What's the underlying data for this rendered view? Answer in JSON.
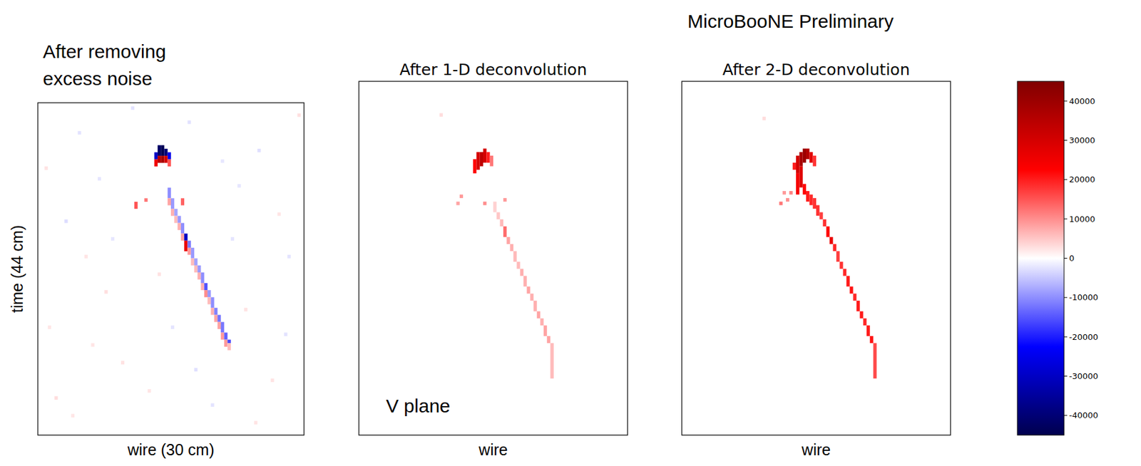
{
  "header": "MicroBooNE Preliminary",
  "chart_data": [
    {
      "type": "heatmap",
      "title": "After removing excess noise",
      "xlabel": "wire (30 cm)",
      "ylabel": "time (44 cm)",
      "xlim": [
        0,
        80
      ],
      "ylim": [
        0,
        94
      ],
      "tick_labels": false,
      "cells": [
        [
          35,
          78,
          80,
          -30000
        ],
        [
          36,
          79,
          82,
          -42000
        ],
        [
          37,
          79,
          82,
          -44000
        ],
        [
          38,
          79,
          81,
          -40000
        ],
        [
          39,
          78,
          80,
          -25000
        ],
        [
          35,
          76,
          78,
          25000
        ],
        [
          36,
          77,
          79,
          35000
        ],
        [
          37,
          77,
          79,
          38000
        ],
        [
          38,
          77,
          79,
          30000
        ],
        [
          39,
          76,
          78,
          15000
        ],
        [
          29,
          64,
          66,
          15000
        ],
        [
          32,
          66,
          67,
          12000
        ],
        [
          43,
          65,
          67,
          14000
        ],
        [
          39,
          67,
          70,
          -10000
        ],
        [
          39,
          65,
          67,
          8000
        ],
        [
          40,
          64,
          67,
          -9000
        ],
        [
          40,
          62,
          64,
          7000
        ],
        [
          41,
          62,
          64,
          -8000
        ],
        [
          41,
          60,
          62,
          6000
        ],
        [
          42,
          60,
          62,
          -9000
        ],
        [
          42,
          58,
          60,
          7000
        ],
        [
          43,
          57,
          60,
          -10000
        ],
        [
          43,
          55,
          57,
          8000
        ],
        [
          44,
          55,
          57,
          -30000
        ],
        [
          44,
          52,
          55,
          26000
        ],
        [
          45,
          53,
          55,
          -12000
        ],
        [
          45,
          51,
          53,
          9000
        ],
        [
          46,
          50,
          53,
          -9000
        ],
        [
          46,
          48,
          50,
          6000
        ],
        [
          47,
          48,
          50,
          -8000
        ],
        [
          47,
          46,
          48,
          6000
        ],
        [
          48,
          46,
          48,
          -9000
        ],
        [
          48,
          44,
          46,
          7000
        ],
        [
          49,
          43,
          46,
          -10000
        ],
        [
          49,
          41,
          43,
          7000
        ],
        [
          50,
          41,
          43,
          -15000
        ],
        [
          50,
          39,
          41,
          10000
        ],
        [
          51,
          39,
          41,
          -9000
        ],
        [
          51,
          37,
          39,
          6000
        ],
        [
          52,
          36,
          39,
          -10000
        ],
        [
          52,
          34,
          36,
          7000
        ],
        [
          53,
          34,
          36,
          -11000
        ],
        [
          53,
          32,
          34,
          8000
        ],
        [
          54,
          32,
          34,
          -12000
        ],
        [
          54,
          30,
          32,
          8000
        ],
        [
          55,
          29,
          32,
          -12000
        ],
        [
          55,
          27,
          29,
          9000
        ],
        [
          56,
          27,
          29,
          -14000
        ],
        [
          56,
          25,
          27,
          9000
        ],
        [
          57,
          26,
          27,
          -16000
        ],
        [
          57,
          24,
          26,
          6000
        ],
        [
          5,
          10,
          11,
          3000
        ],
        [
          12,
          85,
          86,
          -2500
        ],
        [
          20,
          40,
          41,
          2800
        ],
        [
          8,
          60,
          61,
          -3000
        ],
        [
          70,
          15,
          16,
          2500
        ],
        [
          66,
          80,
          81,
          -2800
        ],
        [
          3,
          30,
          31,
          2200
        ],
        [
          75,
          50,
          51,
          -2400
        ],
        [
          25,
          20,
          21,
          2600
        ],
        [
          60,
          70,
          71,
          -2200
        ],
        [
          14,
          50,
          51,
          2400
        ],
        [
          45,
          88,
          89,
          -2600
        ],
        [
          33,
          12,
          13,
          2300
        ],
        [
          52,
          8,
          9,
          -2500
        ],
        [
          78,
          90,
          91,
          2700
        ],
        [
          18,
          72,
          73,
          -2300
        ],
        [
          62,
          35,
          36,
          2500
        ],
        [
          40,
          30,
          31,
          -2400
        ],
        [
          10,
          5,
          6,
          2200
        ],
        [
          28,
          92,
          93,
          -2600
        ],
        [
          72,
          62,
          63,
          2300
        ],
        [
          55,
          77,
          78,
          -2100
        ],
        [
          2,
          75,
          76,
          2500
        ],
        [
          47,
          18,
          19,
          -2700
        ],
        [
          65,
          3,
          4,
          2400
        ],
        [
          22,
          55,
          56,
          -2200
        ],
        [
          36,
          45,
          46,
          2600
        ],
        [
          74,
          28,
          29,
          -2500
        ],
        [
          16,
          25,
          26,
          2300
        ],
        [
          58,
          55,
          56,
          -2400
        ]
      ]
    },
    {
      "type": "heatmap",
      "title": "After 1-D deconvolution",
      "xlabel": "wire",
      "annotation": "V plane",
      "xlim": [
        0,
        80
      ],
      "ylim": [
        0,
        100
      ],
      "tick_labels": false,
      "cells": [
        [
          34,
          74,
          78,
          22000
        ],
        [
          35,
          75,
          80,
          30000
        ],
        [
          36,
          76,
          80,
          34000
        ],
        [
          37,
          77,
          81,
          30000
        ],
        [
          38,
          77,
          80,
          20000
        ],
        [
          39,
          76,
          79,
          12000
        ],
        [
          30,
          67,
          68,
          9000
        ],
        [
          29,
          65,
          66,
          8000
        ],
        [
          37,
          65,
          66,
          10000
        ],
        [
          43,
          66,
          67,
          9000
        ],
        [
          24,
          90,
          91,
          3000
        ],
        [
          40,
          63,
          66,
          4000
        ],
        [
          41,
          61,
          63,
          5000
        ],
        [
          42,
          59,
          61,
          6000
        ],
        [
          43,
          56,
          59,
          13000
        ],
        [
          44,
          54,
          56,
          8000
        ],
        [
          45,
          52,
          54,
          7000
        ],
        [
          46,
          49,
          52,
          6000
        ],
        [
          47,
          47,
          49,
          6000
        ],
        [
          48,
          45,
          47,
          7000
        ],
        [
          49,
          42,
          45,
          7000
        ],
        [
          50,
          40,
          42,
          8000
        ],
        [
          51,
          38,
          40,
          7000
        ],
        [
          52,
          35,
          38,
          7000
        ],
        [
          53,
          33,
          35,
          8000
        ],
        [
          54,
          31,
          33,
          7000
        ],
        [
          55,
          28,
          31,
          8000
        ],
        [
          56,
          26,
          28,
          8000
        ],
        [
          57,
          16,
          26,
          6000
        ]
      ]
    },
    {
      "type": "heatmap",
      "title": "After 2-D deconvolution",
      "xlabel": "wire",
      "xlim": [
        0,
        80
      ],
      "ylim": [
        0,
        100
      ],
      "tick_labels": false,
      "cells": [
        [
          33,
          75,
          77,
          20000
        ],
        [
          34,
          74,
          79,
          30000
        ],
        [
          35,
          76,
          80,
          38000
        ],
        [
          36,
          77,
          81,
          40000
        ],
        [
          37,
          78,
          81,
          36000
        ],
        [
          38,
          77,
          80,
          28000
        ],
        [
          39,
          76,
          79,
          18000
        ],
        [
          34,
          68,
          74,
          24000
        ],
        [
          35,
          70,
          76,
          28000
        ],
        [
          29,
          65,
          66,
          12000
        ],
        [
          31,
          66,
          67,
          10000
        ],
        [
          32,
          68,
          69,
          11000
        ],
        [
          30,
          68,
          69,
          9000
        ],
        [
          24,
          89,
          90,
          3000
        ],
        [
          36,
          68,
          71,
          22000
        ],
        [
          37,
          66,
          69,
          20000
        ],
        [
          38,
          65,
          68,
          19000
        ],
        [
          39,
          64,
          67,
          18000
        ],
        [
          40,
          62,
          65,
          18000
        ],
        [
          41,
          61,
          63,
          17000
        ],
        [
          42,
          59,
          61,
          18000
        ],
        [
          43,
          56,
          59,
          22000
        ],
        [
          44,
          54,
          56,
          26000
        ],
        [
          45,
          52,
          54,
          19000
        ],
        [
          46,
          49,
          52,
          17000
        ],
        [
          47,
          47,
          49,
          18000
        ],
        [
          48,
          45,
          47,
          19000
        ],
        [
          49,
          42,
          45,
          20000
        ],
        [
          50,
          40,
          42,
          21000
        ],
        [
          51,
          38,
          40,
          19000
        ],
        [
          52,
          35,
          38,
          20000
        ],
        [
          53,
          33,
          35,
          20000
        ],
        [
          54,
          31,
          33,
          19000
        ],
        [
          55,
          28,
          31,
          20000
        ],
        [
          56,
          26,
          28,
          21000
        ],
        [
          57,
          16,
          26,
          16000
        ]
      ]
    }
  ],
  "colorbar": {
    "range": [
      -45000,
      45000
    ],
    "ticks": [
      -40000,
      -30000,
      -20000,
      -10000,
      0,
      10000,
      20000,
      30000,
      40000
    ]
  }
}
